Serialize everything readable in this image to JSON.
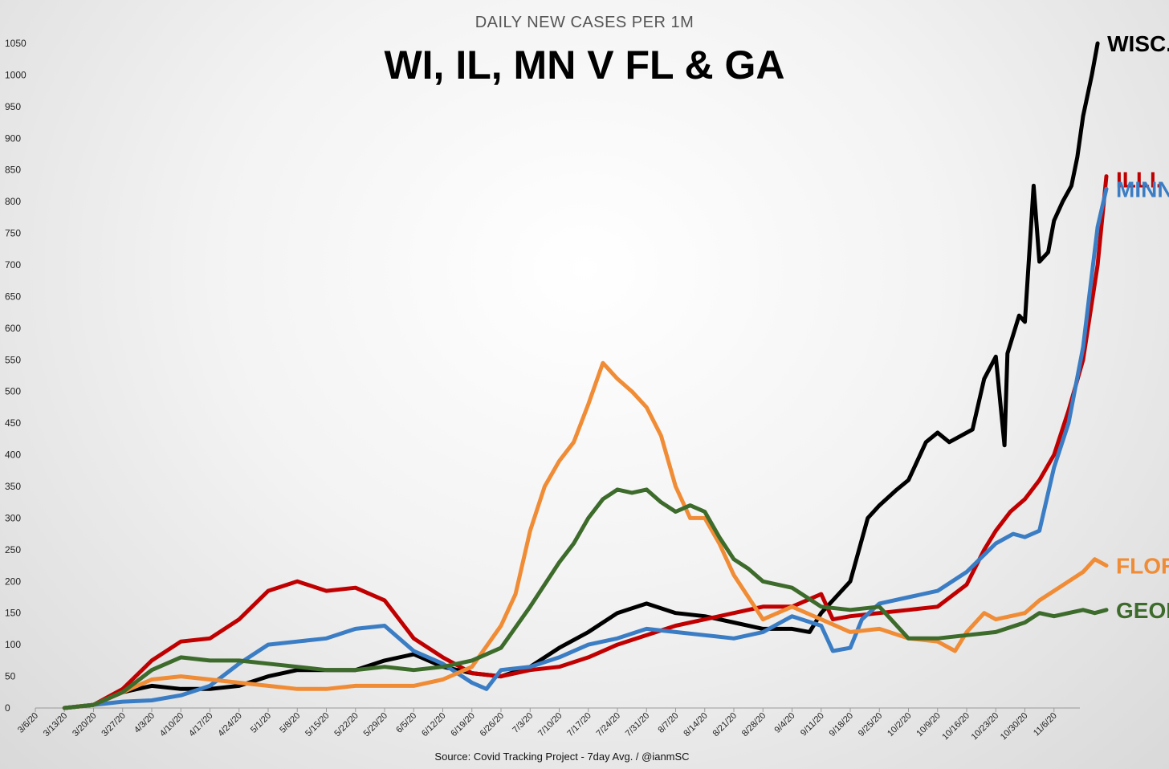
{
  "chart_data": {
    "type": "line",
    "subtitle": "DAILY NEW CASES PER 1M",
    "title": "WI, IL, MN V FL & GA",
    "source": "Source: Covid Tracking Project - 7day Avg. / @ianmSC",
    "ylim": [
      0,
      1050
    ],
    "yticks": [
      0,
      50,
      100,
      150,
      200,
      250,
      300,
      350,
      400,
      450,
      500,
      550,
      600,
      650,
      700,
      750,
      800,
      850,
      900,
      950,
      1000,
      1050
    ],
    "xticks": [
      "3/6/20",
      "3/13/20",
      "3/20/20",
      "3/27/20",
      "4/3/20",
      "4/10/20",
      "4/17/20",
      "4/24/20",
      "5/1/20",
      "5/8/20",
      "5/15/20",
      "5/22/20",
      "5/29/20",
      "6/5/20",
      "6/12/20",
      "6/19/20",
      "6/26/20",
      "7/3/20",
      "7/10/20",
      "7/17/20",
      "7/24/20",
      "7/31/20",
      "8/7/20",
      "8/14/20",
      "8/21/20",
      "8/28/20",
      "9/4/20",
      "9/11/20",
      "9/18/20",
      "9/25/20",
      "10/2/20",
      "10/9/20",
      "10/16/20",
      "10/23/20",
      "10/30/20",
      "11/6/20"
    ],
    "grid": false,
    "x_unit": "week index from 3/6/20",
    "series": [
      {
        "name": "WISC.",
        "color": "#000000",
        "points": [
          [
            1,
            0
          ],
          [
            2,
            5
          ],
          [
            3,
            25
          ],
          [
            4,
            35
          ],
          [
            5,
            30
          ],
          [
            6,
            30
          ],
          [
            7,
            35
          ],
          [
            8,
            50
          ],
          [
            9,
            60
          ],
          [
            10,
            60
          ],
          [
            11,
            60
          ],
          [
            12,
            75
          ],
          [
            13,
            85
          ],
          [
            14,
            65
          ],
          [
            15,
            55
          ],
          [
            16,
            50
          ],
          [
            17,
            65
          ],
          [
            18,
            95
          ],
          [
            19,
            120
          ],
          [
            20,
            150
          ],
          [
            21,
            165
          ],
          [
            22,
            150
          ],
          [
            23,
            145
          ],
          [
            24,
            135
          ],
          [
            25,
            125
          ],
          [
            26,
            125
          ],
          [
            26.6,
            120
          ],
          [
            27,
            150
          ],
          [
            28,
            200
          ],
          [
            28.6,
            300
          ],
          [
            29,
            320
          ],
          [
            29.6,
            345
          ],
          [
            30,
            360
          ],
          [
            30.6,
            420
          ],
          [
            31,
            435
          ],
          [
            31.4,
            420
          ],
          [
            31.8,
            430
          ],
          [
            32.2,
            440
          ],
          [
            32.6,
            520
          ],
          [
            33,
            555
          ],
          [
            33.3,
            415
          ],
          [
            33.4,
            560
          ],
          [
            33.8,
            620
          ],
          [
            34,
            610
          ],
          [
            34.3,
            825
          ],
          [
            34.5,
            705
          ],
          [
            34.8,
            720
          ],
          [
            35,
            770
          ],
          [
            35.3,
            800
          ],
          [
            35.6,
            825
          ],
          [
            35.8,
            870
          ],
          [
            36,
            935
          ],
          [
            36.3,
            1000
          ],
          [
            36.5,
            1050
          ]
        ]
      },
      {
        "name": "ILLI.",
        "color": "#c00000",
        "points": [
          [
            1,
            0
          ],
          [
            2,
            5
          ],
          [
            3,
            30
          ],
          [
            4,
            75
          ],
          [
            5,
            105
          ],
          [
            6,
            110
          ],
          [
            7,
            140
          ],
          [
            8,
            185
          ],
          [
            9,
            200
          ],
          [
            10,
            185
          ],
          [
            11,
            190
          ],
          [
            12,
            170
          ],
          [
            13,
            110
          ],
          [
            14,
            80
          ],
          [
            15,
            55
          ],
          [
            16,
            50
          ],
          [
            17,
            60
          ],
          [
            18,
            65
          ],
          [
            19,
            80
          ],
          [
            20,
            100
          ],
          [
            21,
            115
          ],
          [
            22,
            130
          ],
          [
            23,
            140
          ],
          [
            24,
            150
          ],
          [
            25,
            160
          ],
          [
            26,
            160
          ],
          [
            27,
            180
          ],
          [
            27.4,
            140
          ],
          [
            28,
            145
          ],
          [
            29,
            150
          ],
          [
            30,
            155
          ],
          [
            31,
            160
          ],
          [
            32,
            195
          ],
          [
            32.6,
            250
          ],
          [
            33,
            280
          ],
          [
            33.5,
            310
          ],
          [
            34,
            330
          ],
          [
            34.5,
            360
          ],
          [
            35,
            400
          ],
          [
            35.5,
            470
          ],
          [
            36,
            550
          ],
          [
            36.5,
            700
          ],
          [
            36.8,
            840
          ]
        ]
      },
      {
        "name": "MINN.",
        "color": "#3b7dc4",
        "points": [
          [
            1,
            0
          ],
          [
            2,
            5
          ],
          [
            3,
            10
          ],
          [
            4,
            12
          ],
          [
            5,
            20
          ],
          [
            6,
            35
          ],
          [
            7,
            70
          ],
          [
            8,
            100
          ],
          [
            9,
            105
          ],
          [
            10,
            110
          ],
          [
            11,
            125
          ],
          [
            12,
            130
          ],
          [
            13,
            90
          ],
          [
            14,
            70
          ],
          [
            15,
            40
          ],
          [
            15.5,
            30
          ],
          [
            16,
            60
          ],
          [
            17,
            65
          ],
          [
            18,
            80
          ],
          [
            19,
            100
          ],
          [
            20,
            110
          ],
          [
            21,
            125
          ],
          [
            22,
            120
          ],
          [
            23,
            115
          ],
          [
            24,
            110
          ],
          [
            25,
            120
          ],
          [
            26,
            145
          ],
          [
            27,
            130
          ],
          [
            27.4,
            90
          ],
          [
            28,
            95
          ],
          [
            28.4,
            140
          ],
          [
            29,
            165
          ],
          [
            30,
            175
          ],
          [
            31,
            185
          ],
          [
            32,
            215
          ],
          [
            33,
            260
          ],
          [
            33.6,
            275
          ],
          [
            34,
            270
          ],
          [
            34.5,
            280
          ],
          [
            35,
            380
          ],
          [
            35.5,
            450
          ],
          [
            36,
            570
          ],
          [
            36.5,
            760
          ],
          [
            36.8,
            820
          ]
        ]
      },
      {
        "name": "FLOR.",
        "color": "#f08c35",
        "points": [
          [
            1,
            0
          ],
          [
            2,
            5
          ],
          [
            3,
            25
          ],
          [
            4,
            45
          ],
          [
            5,
            50
          ],
          [
            6,
            45
          ],
          [
            7,
            40
          ],
          [
            8,
            35
          ],
          [
            9,
            30
          ],
          [
            10,
            30
          ],
          [
            11,
            35
          ],
          [
            12,
            35
          ],
          [
            13,
            35
          ],
          [
            14,
            45
          ],
          [
            15,
            65
          ],
          [
            16,
            130
          ],
          [
            16.5,
            180
          ],
          [
            17,
            280
          ],
          [
            17.5,
            350
          ],
          [
            18,
            390
          ],
          [
            18.5,
            420
          ],
          [
            19,
            480
          ],
          [
            19.5,
            545
          ],
          [
            20,
            520
          ],
          [
            20.5,
            500
          ],
          [
            21,
            475
          ],
          [
            21.5,
            430
          ],
          [
            22,
            350
          ],
          [
            22.5,
            300
          ],
          [
            23,
            300
          ],
          [
            23.5,
            260
          ],
          [
            24,
            210
          ],
          [
            25,
            140
          ],
          [
            26,
            160
          ],
          [
            27,
            140
          ],
          [
            28,
            120
          ],
          [
            29,
            125
          ],
          [
            30,
            110
          ],
          [
            31,
            105
          ],
          [
            31.6,
            90
          ],
          [
            32,
            120
          ],
          [
            32.6,
            150
          ],
          [
            33,
            140
          ],
          [
            34,
            150
          ],
          [
            34.5,
            170
          ],
          [
            35,
            185
          ],
          [
            35.5,
            200
          ],
          [
            36,
            215
          ],
          [
            36.4,
            235
          ],
          [
            36.8,
            225
          ]
        ]
      },
      {
        "name": "GEOR.",
        "color": "#3d6b2b",
        "points": [
          [
            1,
            0
          ],
          [
            2,
            5
          ],
          [
            3,
            25
          ],
          [
            4,
            60
          ],
          [
            5,
            80
          ],
          [
            6,
            75
          ],
          [
            7,
            75
          ],
          [
            8,
            70
          ],
          [
            9,
            65
          ],
          [
            10,
            60
          ],
          [
            11,
            60
          ],
          [
            12,
            65
          ],
          [
            13,
            60
          ],
          [
            14,
            65
          ],
          [
            15,
            75
          ],
          [
            16,
            95
          ],
          [
            17,
            160
          ],
          [
            18,
            230
          ],
          [
            18.5,
            260
          ],
          [
            19,
            300
          ],
          [
            19.5,
            330
          ],
          [
            20,
            345
          ],
          [
            20.5,
            340
          ],
          [
            21,
            345
          ],
          [
            21.5,
            325
          ],
          [
            22,
            310
          ],
          [
            22.5,
            320
          ],
          [
            23,
            310
          ],
          [
            23.5,
            270
          ],
          [
            24,
            235
          ],
          [
            24.5,
            220
          ],
          [
            25,
            200
          ],
          [
            26,
            190
          ],
          [
            27,
            160
          ],
          [
            28,
            155
          ],
          [
            29,
            160
          ],
          [
            30,
            110
          ],
          [
            31,
            110
          ],
          [
            32,
            115
          ],
          [
            33,
            120
          ],
          [
            34,
            135
          ],
          [
            34.5,
            150
          ],
          [
            35,
            145
          ],
          [
            35.5,
            150
          ],
          [
            36,
            155
          ],
          [
            36.4,
            150
          ],
          [
            36.8,
            155
          ]
        ]
      }
    ]
  }
}
